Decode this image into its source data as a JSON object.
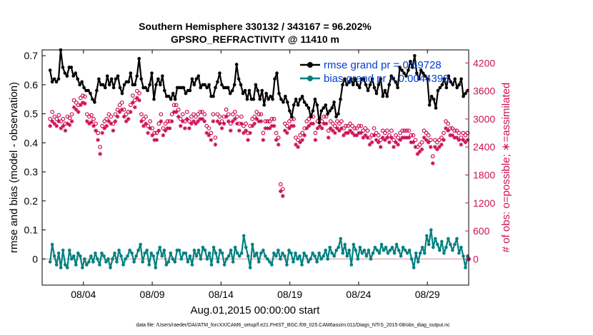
{
  "title_line1": "Southern Hemisphere 330132 / 343167 = 96.202%",
  "title_line2": "GPSRO_REFRACTIVITY @ 11410 m",
  "xlabel": "Aug.01,2015 00:00:00 start",
  "footnote": "data file: /Users/raeder/DAI/ATM_forcXX/CAM6_setup/f.e21.FHIST_BGC.f09_025.CAM6assim.011/Diags_NTrS_2015-08/obs_diag_output.nc",
  "colors": {
    "rmse": "#000000",
    "bias": "#008080",
    "obs": "#cc1155",
    "zero_line": "#e8b0b0"
  },
  "chart_data": {
    "type": "line",
    "x_ticks": [
      3.5,
      8.5,
      13.5,
      18.5,
      23.5,
      28.5
    ],
    "x_tick_labels": [
      "08/04",
      "08/09",
      "08/14",
      "08/19",
      "08/24",
      "08/29"
    ],
    "xlim": [
      0.5,
      31.5
    ],
    "ylim_left": [
      -0.09,
      0.72
    ],
    "ylim_right": [
      -560,
      4480
    ],
    "yticks_left": [
      0,
      0.1,
      0.2,
      0.3,
      0.4,
      0.5,
      0.6,
      0.7
    ],
    "ytick_labels_left": [
      "0",
      "0.1",
      "0.2",
      "0.3",
      "0.4",
      "0.5",
      "0.6",
      "0.7"
    ],
    "yticks_right": [
      0,
      600,
      1200,
      1800,
      2400,
      3000,
      3600,
      4200
    ],
    "ytick_labels_right": [
      "0",
      "600",
      "1200",
      "1800",
      "2400",
      "3000",
      "3600",
      "4200"
    ],
    "ylabel_left": "rmse and bias (model - observation)",
    "ylabel_right": "# of obs: o=possible; ∗=assimilated",
    "legend_position": "top-right",
    "series": [
      {
        "name": "rmse grand pr = 0.59728",
        "axis": "left",
        "marker": "dot",
        "values": [
          0.65,
          0.61,
          0.62,
          0.61,
          0.62,
          0.72,
          0.66,
          0.64,
          0.63,
          0.66,
          0.66,
          0.63,
          0.64,
          0.62,
          0.6,
          0.61,
          0.59,
          0.58,
          0.58,
          0.57,
          0.55,
          0.54,
          0.58,
          0.62,
          0.6,
          0.6,
          0.59,
          0.63,
          0.6,
          0.62,
          0.59,
          0.62,
          0.63,
          0.59,
          0.57,
          0.6,
          0.61,
          0.61,
          0.64,
          0.6,
          0.6,
          0.63,
          0.69,
          0.62,
          0.59,
          0.59,
          0.58,
          0.6,
          0.64,
          0.55,
          0.6,
          0.62,
          0.6,
          0.63,
          0.58,
          0.56,
          0.56,
          0.55,
          0.57,
          0.55,
          0.59,
          0.59,
          0.59,
          0.59,
          0.57,
          0.58,
          0.58,
          0.62,
          0.6,
          0.62,
          0.63,
          0.59,
          0.6,
          0.6,
          0.59,
          0.6,
          0.56,
          0.56,
          0.59,
          0.61,
          0.64,
          0.6,
          0.59,
          0.59,
          0.59,
          0.57,
          0.58,
          0.6,
          0.67,
          0.62,
          0.6,
          0.57,
          0.58,
          0.55,
          0.58,
          0.55,
          0.55,
          0.6,
          0.58,
          0.55,
          0.58,
          0.53,
          0.57,
          0.55,
          0.56,
          0.55,
          0.62,
          0.64,
          0.57,
          0.55,
          0.54,
          0.56,
          0.54,
          0.51,
          0.49,
          0.53,
          0.55,
          0.53,
          0.55,
          0.56,
          0.54,
          0.53,
          0.52,
          0.49,
          0.51,
          0.55,
          0.53,
          0.47,
          0.51,
          0.52,
          0.53,
          0.5,
          0.51,
          0.52,
          0.54,
          0.49,
          0.5,
          0.55,
          0.6,
          0.62,
          0.6,
          0.61,
          0.62,
          0.6,
          0.62,
          0.6,
          0.59,
          0.62,
          0.62,
          0.6,
          0.58,
          0.6,
          0.62,
          0.59,
          0.57,
          0.6,
          0.62,
          0.56,
          0.58,
          0.56,
          0.6,
          0.63,
          0.62,
          0.61,
          0.59,
          0.66,
          0.65,
          0.64,
          0.63,
          0.65,
          0.68,
          0.66,
          0.7,
          0.64,
          0.62,
          0.65,
          0.64,
          0.63,
          0.62,
          0.53,
          0.56,
          0.55,
          0.52,
          0.58,
          0.59,
          0.6,
          0.62,
          0.59,
          0.63,
          0.61,
          0.6,
          0.62,
          0.59,
          0.6,
          0.62,
          0.56,
          0.57,
          0.58
        ]
      },
      {
        "name": "bias grand pr = 0.0044398",
        "axis": "left",
        "marker": "dot",
        "values": [
          -0.01,
          0.05,
          0.01,
          -0.02,
          0.02,
          -0.03,
          0.03,
          -0.02,
          -0.03,
          0.03,
          0.0,
          0.01,
          -0.02,
          0.02,
          0.01,
          -0.03,
          0.0,
          -0.02,
          -0.01,
          0.01,
          -0.01,
          0.02,
          0.0,
          -0.02,
          0.02,
          0.01,
          -0.01,
          0.0,
          -0.03,
          0.0,
          0.02,
          -0.01,
          0.03,
          0.01,
          -0.02,
          0.0,
          0.01,
          0.03,
          0.02,
          -0.01,
          0.01,
          0.03,
          0.05,
          -0.01,
          0.02,
          0.03,
          -0.02,
          0.02,
          0.01,
          -0.03,
          0.02,
          0.04,
          0.01,
          0.03,
          -0.02,
          -0.01,
          0.02,
          0.0,
          -0.01,
          0.03,
          0.03,
          0.0,
          0.02,
          0.02,
          -0.01,
          0.01,
          -0.02,
          0.03,
          0.01,
          0.03,
          0.0,
          0.04,
          0.03,
          0.0,
          0.02,
          -0.02,
          0.04,
          0.02,
          -0.01,
          0.03,
          0.02,
          -0.02,
          0.0,
          0.01,
          0.03,
          -0.01,
          0.04,
          0.02,
          0.01,
          0.02,
          0.08,
          0.04,
          0.01,
          -0.03,
          0.05,
          0.01,
          0.02,
          -0.01,
          0.02,
          0.03,
          0.01,
          0.0,
          -0.01,
          -0.02,
          0.02,
          0.01,
          0.03,
          0.0,
          0.02,
          0.01,
          -0.02,
          0.03,
          0.02,
          -0.01,
          0.02,
          0.0,
          0.01,
          -0.02,
          0.02,
          0.01,
          -0.01,
          0.0,
          0.02,
          0.01,
          -0.01,
          0.02,
          0.0,
          0.01,
          0.03,
          0.0,
          0.04,
          0.02,
          0.01,
          0.03,
          0.04,
          0.07,
          0.02,
          0.05,
          0.01,
          0.03,
          -0.02,
          0.05,
          0.03,
          0.0,
          0.04,
          0.02,
          0.03,
          0.01,
          0.03,
          0.0,
          0.02,
          0.04,
          0.03,
          0.02,
          0.05,
          0.03,
          0.04,
          0.02,
          0.03,
          0.04,
          0.02,
          0.05,
          0.03,
          0.01,
          0.04,
          0.03,
          0.02,
          0.03,
          0.0,
          -0.03,
          0.02,
          -0.01,
          0.02,
          0.04,
          0.02,
          0.08,
          0.05,
          0.1,
          0.04,
          0.07,
          0.05,
          0.03,
          0.06,
          0.02,
          0.04,
          0.07,
          0.05,
          0.03,
          0.05,
          0.07,
          0.02,
          0.04,
          0.01,
          -0.03,
          0.01
        ]
      },
      {
        "name": "possible",
        "axis": "right",
        "marker": "o",
        "values": [
          3000,
          3150,
          3050,
          3000,
          3080,
          2950,
          3000,
          2900,
          3050,
          3020,
          3100,
          3400,
          3350,
          3300,
          3450,
          3500,
          3480,
          3100,
          3050,
          3080,
          3000,
          2900,
          2700,
          2400,
          2850,
          2950,
          3000,
          3100,
          3050,
          2900,
          3100,
          3200,
          3300,
          3350,
          3200,
          3100,
          3150,
          3300,
          3500,
          3400,
          3600,
          3550,
          3100,
          3000,
          3050,
          2850,
          2950,
          2800,
          2700,
          2700,
          2900,
          3100,
          2800,
          2900,
          2950,
          2950,
          3100,
          3300,
          3300,
          3200,
          3000,
          3100,
          2950,
          3150,
          2950,
          3050,
          3100,
          3050,
          3100,
          3150,
          3150,
          3100,
          2850,
          2800,
          2700,
          3100,
          2600,
          3100,
          3050,
          2950,
          3050,
          3200,
          3100,
          2900,
          3100,
          3150,
          3050,
          2900,
          3050,
          2850,
          2900,
          2700,
          2850,
          3000,
          3050,
          3150,
          3100,
          3100,
          2700,
          2950,
          2950,
          2950,
          3000,
          3000,
          2700,
          2600,
          1600,
          1500,
          2900,
          2850,
          2950,
          3000,
          3000,
          2600,
          2550,
          2650,
          2700,
          2800,
          2950,
          3000,
          3050,
          3050,
          2700,
          2950,
          3000,
          2950,
          3050,
          3050,
          2750,
          2950,
          2900,
          2850,
          2950,
          2900,
          2950,
          2800,
          2850,
          2850,
          2900,
          2850,
          2800,
          2800,
          2850,
          2850,
          2750,
          2800,
          2750,
          2600,
          2650,
          2800,
          2700,
          2650,
          2550,
          2750,
          2700,
          2750,
          2650,
          2750,
          2550,
          2650,
          2600,
          2700,
          2750,
          2750,
          2750,
          2750,
          2650,
          2650,
          2550,
          2400,
          2450,
          2500,
          2750,
          2700,
          2650,
          2550,
          2200,
          2550,
          2500,
          2550,
          2600,
          2700,
          2950,
          2900,
          2800,
          2800,
          2750,
          2750,
          2700,
          2600,
          2700,
          2650,
          2700
        ]
      },
      {
        "name": "assimilated",
        "axis": "right",
        "marker": "asterisk",
        "values": [
          2850,
          2950,
          2900,
          2850,
          2950,
          2800,
          2850,
          2750,
          2900,
          2870,
          2950,
          3250,
          3200,
          3150,
          3300,
          3350,
          3330,
          2950,
          2900,
          2930,
          2850,
          2750,
          2550,
          2250,
          2700,
          2800,
          2850,
          2950,
          2900,
          2750,
          2950,
          3050,
          3150,
          3200,
          3050,
          2950,
          3000,
          3150,
          3350,
          3250,
          3450,
          3400,
          2950,
          2850,
          2900,
          2700,
          2800,
          2650,
          2550,
          2550,
          2750,
          2950,
          2650,
          2750,
          2800,
          2800,
          2950,
          3150,
          3150,
          3050,
          2850,
          2950,
          2800,
          3000,
          2800,
          2900,
          2950,
          2900,
          2950,
          3000,
          3000,
          2950,
          2700,
          2650,
          2550,
          2950,
          2450,
          2950,
          2900,
          2800,
          2900,
          3050,
          2950,
          2750,
          2950,
          3000,
          2900,
          2750,
          2900,
          2700,
          2750,
          2550,
          2700,
          2850,
          2900,
          3000,
          2950,
          2950,
          2550,
          2800,
          2800,
          2800,
          2850,
          2850,
          2550,
          2450,
          1450,
          1350,
          2750,
          2700,
          2800,
          2850,
          2850,
          2450,
          2400,
          2500,
          2550,
          2650,
          2800,
          2850,
          2900,
          2900,
          2550,
          2800,
          2850,
          2800,
          2900,
          2900,
          2600,
          2800,
          2750,
          2700,
          2800,
          2750,
          2800,
          2650,
          2700,
          2700,
          2750,
          2700,
          2650,
          2650,
          2700,
          2700,
          2600,
          2650,
          2600,
          2450,
          2500,
          2650,
          2550,
          2500,
          2400,
          2600,
          2550,
          2600,
          2500,
          2600,
          2400,
          2500,
          2450,
          2550,
          2600,
          2600,
          2600,
          2600,
          2500,
          2500,
          2400,
          2250,
          2300,
          2350,
          2600,
          2550,
          2500,
          2400,
          2050,
          2400,
          2350,
          2400,
          2450,
          2550,
          2800,
          2750,
          2650,
          2650,
          2600,
          2600,
          2550,
          2450,
          2550,
          2500,
          2550
        ]
      }
    ]
  }
}
